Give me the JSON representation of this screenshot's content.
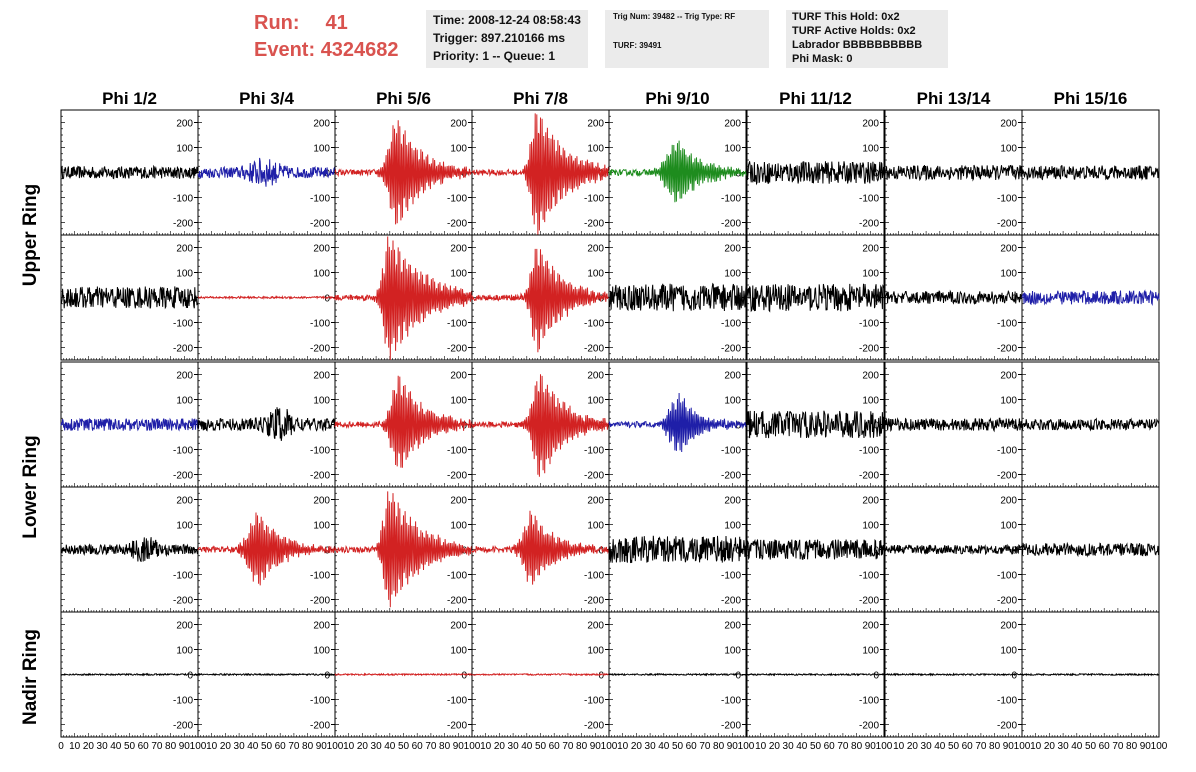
{
  "header": {
    "run_label": "Run:",
    "run_value": "41",
    "event_label": "Event:",
    "event_value": "4324682",
    "time": "Time: 2008-12-24 08:58:43",
    "trigger": "Trigger: 897.210166 ms",
    "priority": "Priority: 1 -- Queue: 1",
    "trig_num": "Trig Num: 39482 -- Trig Type: RF",
    "turf": "TURF: 39491",
    "turf_hold": "TURF This Hold: 0x2",
    "turf_active": "TURF Active Holds: 0x2",
    "labrador": "Labrador BBBBBBBBBB",
    "phi_mask": "Phi Mask: 0"
  },
  "colors": {
    "red": "#d22222",
    "blue": "#1f1fa8",
    "green": "#1e8c1e",
    "black": "#000000",
    "header_red": "#d9534f"
  },
  "chart_data": {
    "type": "line",
    "columns": [
      "Phi 1/2",
      "Phi 3/4",
      "Phi 5/6",
      "Phi 7/8",
      "Phi 9/10",
      "Phi 11/12",
      "Phi 13/14",
      "Phi 15/16"
    ],
    "rows": [
      "Upper Ring",
      "Upper Ring",
      "Lower Ring",
      "Lower Ring",
      "Nadir Ring"
    ],
    "row_labels": [
      "Upper Ring",
      "Lower Ring",
      "Nadir Ring"
    ],
    "xlim": [
      0,
      100
    ],
    "ylim": [
      -250,
      250
    ],
    "x_tick_labels": [
      "0",
      "10",
      "20",
      "30",
      "40",
      "50",
      "60",
      "70",
      "80",
      "90",
      "100"
    ],
    "y_tick_labels": [
      "200",
      "100",
      "0",
      "-100",
      "-200"
    ],
    "y_ticks": [
      200,
      100,
      0,
      -100,
      -200
    ],
    "grid": false,
    "panels": [
      [
        {
          "color": "black",
          "kind": "noise",
          "amp": 25
        },
        {
          "color": "blue",
          "kind": "noise",
          "amp": 22,
          "burst": true,
          "center": 48,
          "width": 12,
          "peak": 40
        },
        {
          "color": "red",
          "kind": "pulse",
          "center": 46,
          "amp": 220,
          "rise": 8,
          "decay": 18
        },
        {
          "color": "red",
          "kind": "pulse",
          "center": 48,
          "amp": 260,
          "rise": 6,
          "decay": 20
        },
        {
          "color": "green",
          "kind": "pulse",
          "center": 50,
          "amp": 130,
          "rise": 10,
          "decay": 18
        },
        {
          "color": "black",
          "kind": "noise",
          "amp": 45
        },
        {
          "color": "black",
          "kind": "noise",
          "amp": 30
        },
        {
          "color": "black",
          "kind": "noise",
          "amp": 28
        }
      ],
      [
        {
          "color": "black",
          "kind": "noise",
          "amp": 45
        },
        {
          "color": "red",
          "kind": "flat",
          "amp": 4
        },
        {
          "color": "red",
          "kind": "pulse",
          "center": 40,
          "amp": 250,
          "rise": 6,
          "decay": 25
        },
        {
          "color": "red",
          "kind": "pulse",
          "center": 48,
          "amp": 220,
          "rise": 6,
          "decay": 18
        },
        {
          "color": "black",
          "kind": "noise",
          "amp": 55
        },
        {
          "color": "black",
          "kind": "noise",
          "amp": 55
        },
        {
          "color": "black",
          "kind": "noise",
          "amp": 25
        },
        {
          "color": "blue",
          "kind": "noise",
          "amp": 28
        }
      ],
      [
        {
          "color": "blue",
          "kind": "noise",
          "amp": 25
        },
        {
          "color": "black",
          "kind": "noise",
          "amp": 25,
          "burst": true,
          "center": 60,
          "width": 10,
          "peak": 50
        },
        {
          "color": "red",
          "kind": "pulse",
          "center": 47,
          "amp": 200,
          "rise": 7,
          "decay": 18
        },
        {
          "color": "red",
          "kind": "pulse",
          "center": 50,
          "amp": 220,
          "rise": 7,
          "decay": 18
        },
        {
          "color": "blue",
          "kind": "pulse",
          "center": 52,
          "amp": 120,
          "rise": 10,
          "decay": 14
        },
        {
          "color": "black",
          "kind": "noise",
          "amp": 55
        },
        {
          "color": "black",
          "kind": "noise",
          "amp": 25
        },
        {
          "color": "black",
          "kind": "noise",
          "amp": 22
        }
      ],
      [
        {
          "color": "black",
          "kind": "noise",
          "amp": 20,
          "burst": true,
          "center": 62,
          "width": 10,
          "peak": 40
        },
        {
          "color": "red",
          "kind": "pulse",
          "center": 45,
          "amp": 150,
          "rise": 10,
          "decay": 16
        },
        {
          "color": "red",
          "kind": "pulse",
          "center": 40,
          "amp": 240,
          "rise": 6,
          "decay": 22
        },
        {
          "color": "red",
          "kind": "pulse",
          "center": 44,
          "amp": 150,
          "rise": 8,
          "decay": 16
        },
        {
          "color": "black",
          "kind": "noise",
          "amp": 55
        },
        {
          "color": "black",
          "kind": "noise",
          "amp": 40
        },
        {
          "color": "black",
          "kind": "noise",
          "amp": 18
        },
        {
          "color": "black",
          "kind": "noise",
          "amp": 25
        }
      ],
      [
        {
          "color": "black",
          "kind": "flat",
          "amp": 3
        },
        {
          "color": "black",
          "kind": "flat",
          "amp": 3
        },
        {
          "color": "red",
          "kind": "flat",
          "amp": 3
        },
        {
          "color": "red",
          "kind": "flat",
          "amp": 3
        },
        {
          "color": "black",
          "kind": "flat",
          "amp": 3
        },
        {
          "color": "black",
          "kind": "flat",
          "amp": 3
        },
        {
          "color": "black",
          "kind": "flat",
          "amp": 3
        },
        {
          "color": "black",
          "kind": "flat",
          "amp": 3
        }
      ]
    ]
  }
}
